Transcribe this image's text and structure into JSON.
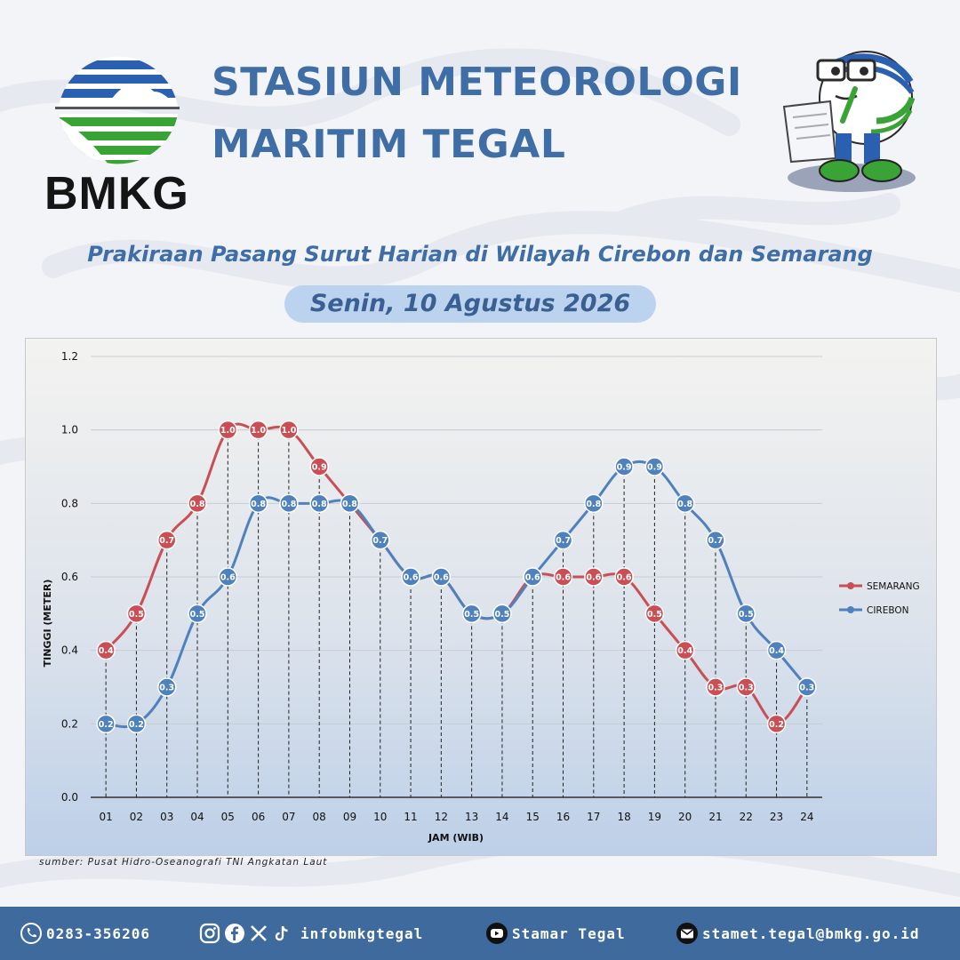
{
  "header": {
    "logo_text": "BMKG",
    "title_line1": "STASIUN METEOROLOGI",
    "title_line2": "MARITIM TEGAL",
    "subtitle": "Prakiraan Pasang Surut Harian di Wilayah Cirebon dan Semarang",
    "date": "Senin, 10 Agustus 2026"
  },
  "chart_data": {
    "type": "line",
    "title": "",
    "xlabel": "JAM (WIB)",
    "ylabel": "TINGGI (METER)",
    "ylim": [
      0,
      1.2
    ],
    "yticks": [
      "0.0",
      "0.2",
      "0.4",
      "0.6",
      "0.8",
      "1.0",
      "1.2"
    ],
    "grid": true,
    "legend_position": "right",
    "categories": [
      "01",
      "02",
      "03",
      "04",
      "05",
      "06",
      "07",
      "08",
      "09",
      "10",
      "11",
      "12",
      "13",
      "14",
      "15",
      "16",
      "17",
      "18",
      "19",
      "20",
      "21",
      "22",
      "23",
      "24"
    ],
    "series": [
      {
        "name": "SEMARANG",
        "color": "#c94f55",
        "values": [
          0.4,
          0.5,
          0.7,
          0.8,
          1.0,
          1.0,
          1.0,
          0.9,
          0.8,
          0.7,
          0.6,
          0.6,
          0.5,
          0.5,
          0.6,
          0.6,
          0.6,
          0.6,
          0.5,
          0.4,
          0.3,
          0.3,
          0.2,
          0.3
        ]
      },
      {
        "name": "CIREBON",
        "color": "#4f81bd",
        "values": [
          0.2,
          0.2,
          0.3,
          0.5,
          0.6,
          0.8,
          0.8,
          0.8,
          0.8,
          0.7,
          0.6,
          0.6,
          0.5,
          0.5,
          0.6,
          0.7,
          0.8,
          0.9,
          0.9,
          0.8,
          0.7,
          0.5,
          0.4,
          0.3
        ]
      }
    ]
  },
  "source_note": "sumber: Pusat Hidro-Oseanografi TNI Angkatan Laut",
  "footer": {
    "phone": "0283-356206",
    "social": "infobmkgtegal",
    "youtube": "Stamar Tegal",
    "email": "stamet.tegal@bmkg.go.id"
  }
}
